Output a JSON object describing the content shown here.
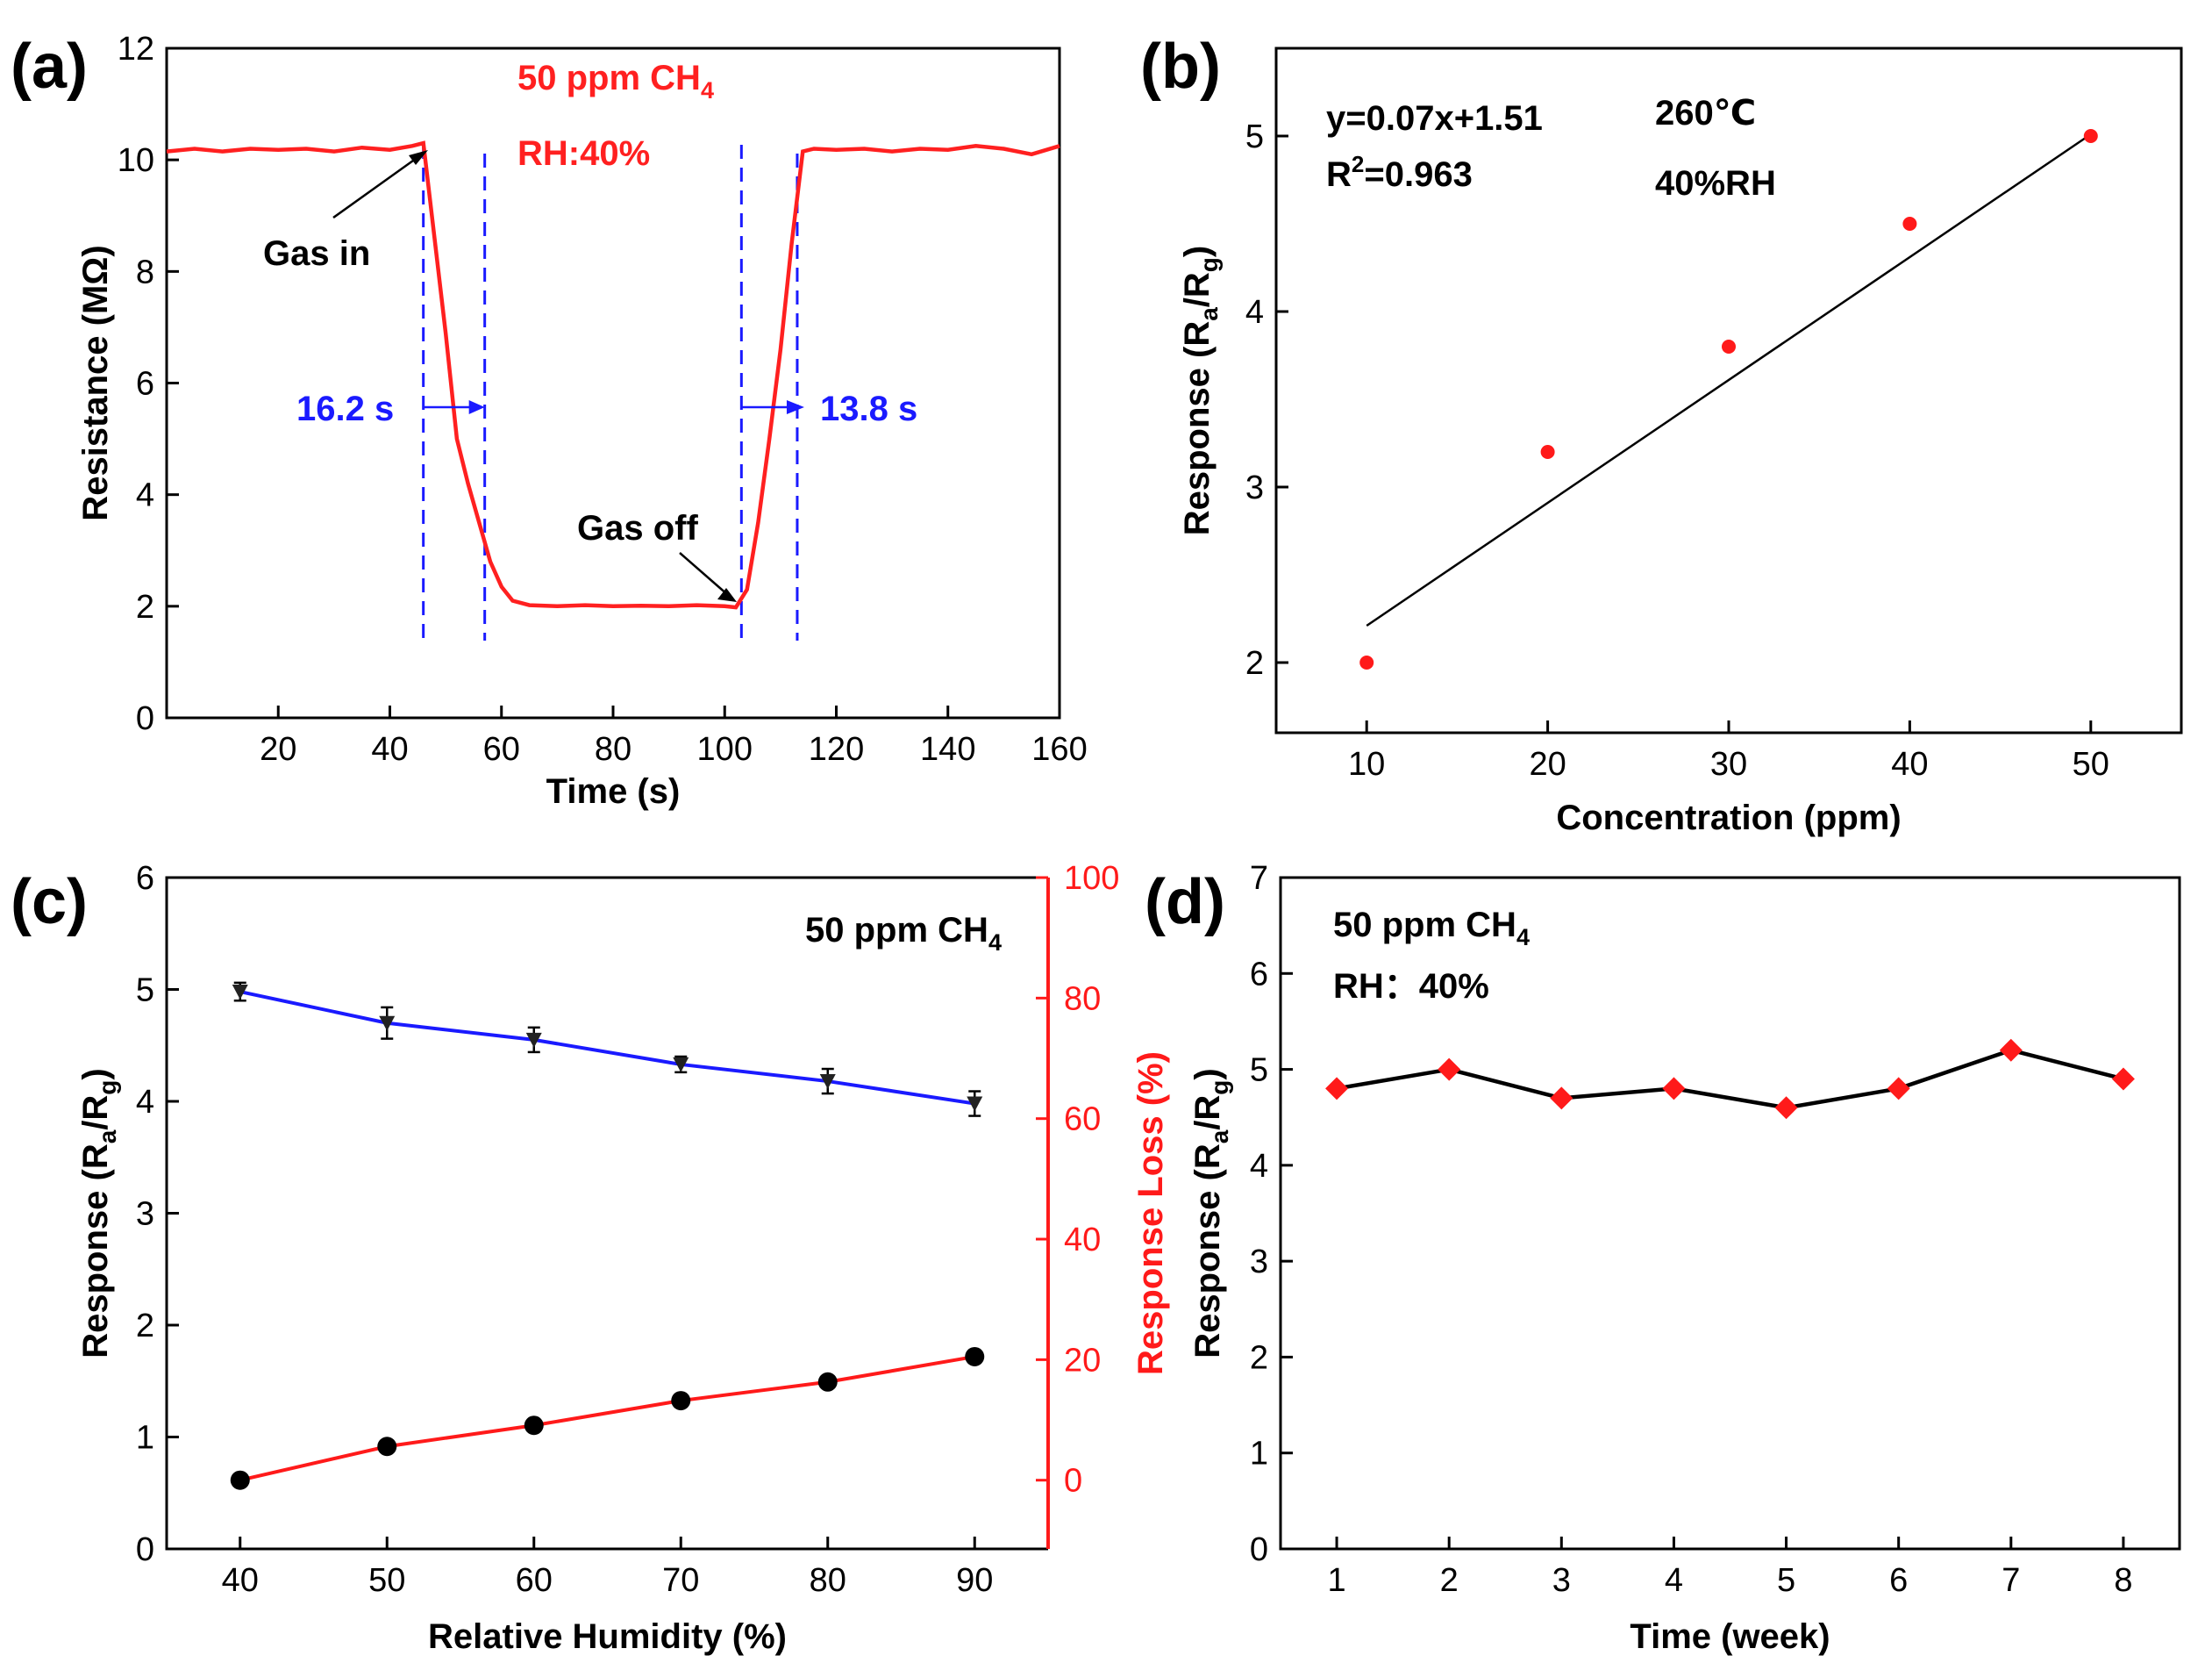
{
  "chart_data": [
    {
      "panel": "a",
      "panel_label": "(a)",
      "type": "line",
      "xlabel": "Time (s)",
      "ylabel": "Resistance (MΩ)",
      "xlim": [
        0,
        160
      ],
      "ylim": [
        0,
        12
      ],
      "xticks": [
        20,
        40,
        60,
        80,
        100,
        120,
        140,
        160
      ],
      "yticks": [
        0,
        2,
        4,
        6,
        8,
        10,
        12
      ],
      "series": [
        {
          "name": "Resistance",
          "color": "#ff2020",
          "x": [
            0,
            5,
            10,
            15,
            20,
            25,
            30,
            35,
            40,
            44,
            46,
            48,
            50,
            52,
            54,
            56,
            58,
            60,
            62,
            65,
            70,
            75,
            80,
            85,
            90,
            95,
            100,
            102,
            104,
            106,
            108,
            110,
            112,
            114,
            116,
            120,
            125,
            130,
            135,
            140,
            145,
            150,
            155,
            160
          ],
          "y": [
            10.15,
            10.2,
            10.15,
            10.2,
            10.18,
            10.2,
            10.15,
            10.22,
            10.18,
            10.25,
            10.3,
            8.6,
            6.9,
            5.0,
            4.2,
            3.5,
            2.8,
            2.35,
            2.1,
            2.02,
            2.0,
            2.02,
            2.0,
            2.01,
            2.0,
            2.02,
            2.0,
            1.98,
            2.3,
            3.5,
            5.0,
            6.6,
            8.5,
            10.15,
            10.2,
            10.18,
            10.2,
            10.15,
            10.2,
            10.18,
            10.25,
            10.2,
            10.1,
            10.25
          ]
        }
      ],
      "annotations": {
        "gas_label": "50 ppm CH",
        "gas_sub": "4",
        "rh": "RH:40%",
        "gas_in": "Gas in",
        "gas_off": "Gas off",
        "response_time": "16.2 s",
        "recovery_time": "13.8 s"
      },
      "guide_lines_x": [
        46,
        57,
        103,
        113
      ]
    },
    {
      "panel": "b",
      "panel_label": "(b)",
      "type": "scatter",
      "xlabel": "Concentration (ppm)",
      "ylabel_main": "Response (R",
      "ylabel_sub1": "a",
      "ylabel_mid": "/R",
      "ylabel_sub2": "g",
      "ylabel_end": ")",
      "xlim": [
        5,
        55
      ],
      "ylim": [
        1.6,
        5.5
      ],
      "xticks": [
        10,
        20,
        30,
        40,
        50
      ],
      "yticks": [
        2,
        3,
        4,
        5
      ],
      "points": {
        "x": [
          10,
          20,
          30,
          40,
          50
        ],
        "y": [
          2.0,
          3.2,
          3.8,
          4.5,
          5.0
        ],
        "color": "#ff1a1a"
      },
      "fit": {
        "slope": 0.07,
        "intercept": 1.51,
        "x_range": [
          10,
          50
        ],
        "color": "#000000"
      },
      "equation": "y=0.07x+1.51",
      "r2_prefix": "R",
      "r2_sup": "2",
      "r2_suffix": "=0.963",
      "temperature": "260℃",
      "humidity": "40%RH"
    },
    {
      "panel": "c",
      "panel_label": "(c)",
      "type": "line",
      "xlabel": "Relative Humidity (%)",
      "ylabel_main": "Response (R",
      "ylabel_sub1": "a",
      "ylabel_mid": "/R",
      "ylabel_sub2": "g",
      "ylabel_end": ")",
      "y2label": "Response Loss (%)",
      "xlim": [
        35,
        95
      ],
      "ylim": [
        0,
        6
      ],
      "y2lim": [
        -11.4,
        100
      ],
      "xticks": [
        40,
        50,
        60,
        70,
        80,
        90
      ],
      "yticks": [
        0,
        1,
        2,
        3,
        4,
        5,
        6
      ],
      "y2ticks": [
        0,
        20,
        40,
        60,
        80,
        100
      ],
      "series": [
        {
          "name": "Response",
          "axis": "left",
          "color": "#1a1aff",
          "marker": "triangle-down",
          "x": [
            40,
            50,
            60,
            70,
            80,
            90
          ],
          "y": [
            4.98,
            4.7,
            4.55,
            4.33,
            4.18,
            3.98
          ],
          "err": [
            0.08,
            0.14,
            0.11,
            0.07,
            0.11,
            0.11
          ]
        },
        {
          "name": "Response Loss",
          "axis": "right",
          "color": "#ff1a1a",
          "marker": "circle",
          "x": [
            40,
            50,
            60,
            70,
            80,
            90
          ],
          "y": [
            0,
            5.6,
            9.1,
            13.2,
            16.3,
            20.5
          ]
        }
      ],
      "annotation_main": "50 ppm CH",
      "annotation_sub": "4"
    },
    {
      "panel": "d",
      "panel_label": "(d)",
      "type": "line",
      "xlabel": "Time (week)",
      "ylabel_main": "Response (R",
      "ylabel_sub1": "a",
      "ylabel_mid": "/R",
      "ylabel_sub2": "g",
      "ylabel_end": ")",
      "xlim": [
        0.5,
        8.5
      ],
      "ylim": [
        0,
        7
      ],
      "xticks": [
        1,
        2,
        3,
        4,
        5,
        6,
        7,
        8
      ],
      "yticks": [
        0,
        1,
        2,
        3,
        4,
        5,
        6,
        7
      ],
      "series": [
        {
          "name": "Response",
          "line_color": "#000000",
          "marker_color": "#ff1a1a",
          "marker": "diamond",
          "x": [
            1,
            2,
            3,
            4,
            5,
            6,
            7,
            8
          ],
          "y": [
            4.8,
            5.0,
            4.7,
            4.8,
            4.6,
            4.8,
            5.2,
            4.9
          ]
        }
      ],
      "annotation_main": "50 ppm CH",
      "annotation_sub": "4",
      "annotation_rh": "RH：40%"
    }
  ]
}
